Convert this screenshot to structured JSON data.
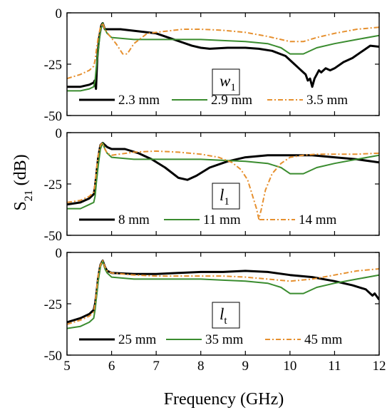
{
  "figure": {
    "ylabel_main": "S",
    "ylabel_sub": "21",
    "ylabel_unit": " (dB)",
    "xlabel": "Frequency (GHz)"
  },
  "chart_data": [
    {
      "type": "line",
      "parameter": {
        "symbol": "w",
        "sub": "1"
      },
      "xlim": [
        5,
        12
      ],
      "ylim": [
        -50,
        0
      ],
      "xticks": [
        "5",
        "6",
        "7",
        "8",
        "9",
        "10",
        "11",
        "12"
      ],
      "yticks": [
        "0",
        "-25",
        "-50"
      ],
      "series": [
        {
          "name": "2.3 mm",
          "color": "#000000",
          "dash": "solid",
          "width": 3,
          "x": [
            5.0,
            5.3,
            5.5,
            5.6,
            5.62,
            5.65,
            5.68,
            5.72,
            5.77,
            5.8,
            5.85,
            5.95,
            6.2,
            6.6,
            7.0,
            7.4,
            7.8,
            8.0,
            8.2,
            8.6,
            9.0,
            9.3,
            9.6,
            9.9,
            10.1,
            10.2,
            10.3,
            10.35,
            10.4,
            10.45,
            10.5,
            10.55,
            10.6,
            10.65,
            10.7,
            10.8,
            10.9,
            11.0,
            11.2,
            11.4,
            11.6,
            11.8,
            12.0
          ],
          "y": [
            -36,
            -36,
            -35,
            -34,
            -33,
            -37,
            -22,
            -12,
            -6,
            -5,
            -8,
            -8,
            -8,
            -9,
            -10,
            -13,
            -16,
            -17,
            -17.5,
            -17,
            -17,
            -17.5,
            -18.5,
            -21,
            -25,
            -27,
            -29,
            -30,
            -33,
            -32,
            -36,
            -32,
            -30,
            -28,
            -29,
            -27,
            -28,
            -27,
            -24,
            -22,
            -19,
            -16,
            -16.5
          ]
        },
        {
          "name": "2.9 mm",
          "color": "#3a8c2f",
          "dash": "solid",
          "width": 2,
          "x": [
            5.0,
            5.3,
            5.5,
            5.6,
            5.63,
            5.66,
            5.7,
            5.75,
            5.8,
            5.85,
            5.9,
            6.0,
            6.5,
            7.0,
            7.5,
            8.0,
            8.5,
            9.0,
            9.5,
            9.8,
            10.0,
            10.3,
            10.6,
            11.0,
            11.5,
            12.0
          ],
          "y": [
            -38,
            -38,
            -37,
            -36,
            -33,
            -26,
            -18,
            -9,
            -5,
            -8,
            -10,
            -12,
            -13,
            -13,
            -13,
            -13,
            -13.5,
            -14,
            -15,
            -17,
            -20,
            -20,
            -17,
            -15,
            -13,
            -11
          ]
        },
        {
          "name": "3.5 mm",
          "color": "#e6902f",
          "dash": "dashdot",
          "width": 2,
          "x": [
            5.0,
            5.3,
            5.5,
            5.6,
            5.63,
            5.66,
            5.7,
            5.75,
            5.8,
            5.85,
            5.95,
            6.1,
            6.25,
            6.35,
            6.5,
            6.8,
            7.2,
            7.6,
            8.0,
            8.5,
            9.0,
            9.5,
            10.0,
            10.3,
            10.6,
            11.0,
            11.5,
            12.0
          ],
          "y": [
            -32,
            -30,
            -28,
            -26,
            -23,
            -18,
            -12,
            -7,
            -5,
            -8,
            -11,
            -15,
            -20,
            -20,
            -15,
            -10,
            -9,
            -8,
            -8,
            -8.5,
            -9.5,
            -11.5,
            -14,
            -14,
            -12,
            -10,
            -8,
            -7
          ]
        }
      ]
    },
    {
      "type": "line",
      "parameter": {
        "symbol": "l",
        "sub": "1"
      },
      "xlim": [
        5,
        12
      ],
      "ylim": [
        -50,
        0
      ],
      "xticks": [
        "5",
        "6",
        "7",
        "8",
        "9",
        "10",
        "11",
        "12"
      ],
      "yticks": [
        "0",
        "-25",
        "-50"
      ],
      "series": [
        {
          "name": "8 mm",
          "color": "#000000",
          "dash": "solid",
          "width": 3,
          "x": [
            5.0,
            5.3,
            5.5,
            5.6,
            5.63,
            5.66,
            5.7,
            5.75,
            5.8,
            5.85,
            5.9,
            6.0,
            6.3,
            6.6,
            6.9,
            7.2,
            7.5,
            7.7,
            7.9,
            8.2,
            8.6,
            9.0,
            9.5,
            10.0,
            10.5,
            11.0,
            11.5,
            12.0
          ],
          "y": [
            -35,
            -34,
            -32,
            -30,
            -26,
            -20,
            -12,
            -6,
            -5,
            -6,
            -7,
            -8,
            -8,
            -10,
            -13,
            -17,
            -22,
            -23,
            -21,
            -17,
            -14,
            -12,
            -11,
            -11,
            -11,
            -12,
            -13,
            -14.5
          ]
        },
        {
          "name": "11 mm",
          "color": "#3a8c2f",
          "dash": "solid",
          "width": 2,
          "x": [
            5.0,
            5.3,
            5.5,
            5.6,
            5.63,
            5.66,
            5.7,
            5.75,
            5.8,
            5.85,
            5.9,
            6.0,
            6.5,
            7.0,
            7.5,
            8.0,
            8.5,
            9.0,
            9.5,
            9.8,
            10.0,
            10.3,
            10.6,
            11.0,
            11.5,
            12.0
          ],
          "y": [
            -37,
            -37,
            -35,
            -34,
            -31,
            -24,
            -16,
            -8,
            -5,
            -8,
            -10,
            -12,
            -13,
            -13,
            -13,
            -13,
            -13.5,
            -14,
            -15,
            -17,
            -20,
            -20,
            -17,
            -15,
            -13,
            -11
          ]
        },
        {
          "name": "14 mm",
          "color": "#e6902f",
          "dash": "dashdot",
          "width": 2,
          "x": [
            5.0,
            5.3,
            5.5,
            5.6,
            5.63,
            5.66,
            5.7,
            5.75,
            5.8,
            5.85,
            5.9,
            6.0,
            6.5,
            7.0,
            7.5,
            8.0,
            8.4,
            8.7,
            8.9,
            9.05,
            9.15,
            9.25,
            9.3,
            9.35,
            9.45,
            9.6,
            9.8,
            10.0,
            10.3,
            10.6,
            11.0,
            11.5,
            12.0
          ],
          "y": [
            -34,
            -33,
            -31,
            -29,
            -25,
            -18,
            -11,
            -6,
            -5,
            -8,
            -10,
            -11,
            -9.5,
            -9,
            -9.5,
            -10.5,
            -12,
            -14.5,
            -18,
            -23,
            -30,
            -37,
            -42,
            -38,
            -28,
            -20,
            -15,
            -12,
            -11,
            -10.5,
            -10.5,
            -10.5,
            -10
          ]
        }
      ]
    },
    {
      "type": "line",
      "parameter": {
        "symbol": "l",
        "sub": "t"
      },
      "xlim": [
        5,
        12
      ],
      "ylim": [
        -50,
        0
      ],
      "xticks": [
        "5",
        "6",
        "7",
        "8",
        "9",
        "10",
        "11",
        "12"
      ],
      "yticks": [
        "0",
        "-25",
        "-50"
      ],
      "series": [
        {
          "name": "25 mm",
          "color": "#000000",
          "dash": "solid",
          "width": 3,
          "x": [
            5.0,
            5.3,
            5.5,
            5.6,
            5.63,
            5.66,
            5.7,
            5.75,
            5.8,
            5.85,
            5.9,
            6.0,
            6.5,
            7.0,
            7.5,
            8.0,
            8.5,
            9.0,
            9.5,
            10.0,
            10.5,
            11.0,
            11.4,
            11.7,
            11.85,
            11.9,
            12.0
          ],
          "y": [
            -34,
            -32,
            -30,
            -28,
            -25,
            -20,
            -12,
            -6,
            -4,
            -7,
            -9,
            -10,
            -10.5,
            -10.5,
            -10,
            -9.5,
            -9.5,
            -9,
            -9.5,
            -11,
            -12,
            -14,
            -16,
            -18,
            -21,
            -20,
            -23
          ]
        },
        {
          "name": "35 mm",
          "color": "#3a8c2f",
          "dash": "solid",
          "width": 2,
          "x": [
            5.0,
            5.3,
            5.5,
            5.6,
            5.63,
            5.66,
            5.7,
            5.75,
            5.8,
            5.85,
            5.9,
            6.0,
            6.5,
            7.0,
            7.5,
            8.0,
            8.5,
            9.0,
            9.5,
            9.8,
            10.0,
            10.3,
            10.6,
            11.0,
            11.5,
            12.0
          ],
          "y": [
            -37,
            -36,
            -34,
            -32,
            -28,
            -22,
            -14,
            -7,
            -4,
            -8,
            -10,
            -12,
            -13,
            -13,
            -13,
            -13,
            -13.5,
            -14,
            -15,
            -17,
            -20,
            -20,
            -17,
            -15,
            -13,
            -11
          ]
        },
        {
          "name": "45 mm",
          "color": "#e6902f",
          "dash": "dashdot",
          "width": 2,
          "x": [
            5.0,
            5.3,
            5.5,
            5.6,
            5.63,
            5.66,
            5.7,
            5.75,
            5.8,
            5.85,
            5.9,
            6.0,
            6.5,
            7.0,
            7.5,
            8.0,
            8.5,
            9.0,
            9.5,
            10.0,
            10.5,
            11.0,
            11.5,
            12.0
          ],
          "y": [
            -35,
            -33,
            -31,
            -29,
            -25,
            -19,
            -11,
            -6,
            -4,
            -7,
            -9,
            -10,
            -11,
            -11.5,
            -11.5,
            -11.5,
            -11.5,
            -12,
            -13,
            -14,
            -13,
            -11,
            -9,
            -8
          ]
        }
      ]
    }
  ]
}
